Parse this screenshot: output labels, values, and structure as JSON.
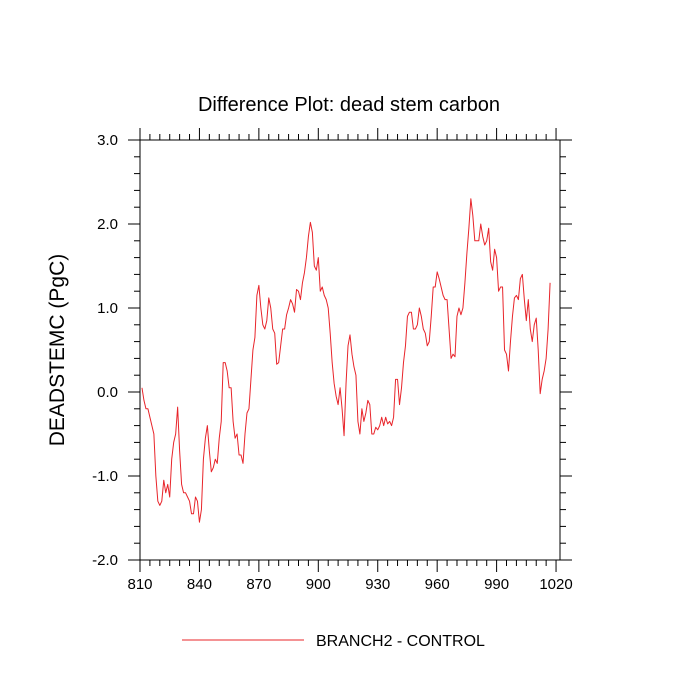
{
  "chart_data": {
    "type": "line",
    "title": "Difference Plot: dead stem carbon",
    "ylabel": "DEADSTEMC  (PgC)",
    "xlabel": "",
    "xlim": [
      810,
      1022
    ],
    "ylim": [
      -2.0,
      3.0
    ],
    "x_ticks": [
      810,
      840,
      870,
      900,
      930,
      960,
      990,
      1020
    ],
    "x_tick_labels": [
      "810",
      "840",
      "870",
      "900",
      "930",
      "960",
      "990",
      "1020"
    ],
    "y_ticks": [
      -2.0,
      -1.0,
      0.0,
      1.0,
      2.0,
      3.0
    ],
    "y_tick_labels": [
      "-2.0",
      "-1.0",
      "0.0",
      "1.0",
      "2.0",
      "3.0"
    ],
    "grid": false,
    "legend_position": "bottom",
    "series": [
      {
        "name": "BRANCH2 - CONTROL",
        "color": "#e8242a",
        "points": [
          [
            811,
            0.05
          ],
          [
            812,
            -0.1
          ],
          [
            813,
            -0.2
          ],
          [
            814,
            -0.2
          ],
          [
            815,
            -0.3
          ],
          [
            816,
            -0.4
          ],
          [
            817,
            -0.5
          ],
          [
            818,
            -1.0
          ],
          [
            819,
            -1.3
          ],
          [
            820,
            -1.35
          ],
          [
            821,
            -1.3
          ],
          [
            822,
            -1.05
          ],
          [
            823,
            -1.2
          ],
          [
            824,
            -1.1
          ],
          [
            825,
            -1.25
          ],
          [
            826,
            -0.8
          ],
          [
            827,
            -0.6
          ],
          [
            828,
            -0.5
          ],
          [
            829,
            -0.18
          ],
          [
            830,
            -0.7
          ],
          [
            831,
            -1.1
          ],
          [
            832,
            -1.2
          ],
          [
            833,
            -1.2
          ],
          [
            834,
            -1.25
          ],
          [
            835,
            -1.3
          ],
          [
            836,
            -1.45
          ],
          [
            837,
            -1.45
          ],
          [
            838,
            -1.25
          ],
          [
            839,
            -1.3
          ],
          [
            840,
            -1.55
          ],
          [
            841,
            -1.4
          ],
          [
            842,
            -0.8
          ],
          [
            843,
            -0.55
          ],
          [
            844,
            -0.4
          ],
          [
            845,
            -0.7
          ],
          [
            846,
            -0.95
          ],
          [
            847,
            -0.9
          ],
          [
            848,
            -0.8
          ],
          [
            849,
            -0.85
          ],
          [
            850,
            -0.55
          ],
          [
            851,
            -0.35
          ],
          [
            852,
            0.35
          ],
          [
            853,
            0.35
          ],
          [
            854,
            0.25
          ],
          [
            855,
            0.05
          ],
          [
            856,
            0.05
          ],
          [
            857,
            -0.35
          ],
          [
            858,
            -0.55
          ],
          [
            859,
            -0.5
          ],
          [
            860,
            -0.75
          ],
          [
            861,
            -0.75
          ],
          [
            862,
            -0.85
          ],
          [
            863,
            -0.5
          ],
          [
            864,
            -0.25
          ],
          [
            865,
            -0.2
          ],
          [
            866,
            0.15
          ],
          [
            867,
            0.5
          ],
          [
            868,
            0.65
          ],
          [
            869,
            1.15
          ],
          [
            870,
            1.27
          ],
          [
            871,
            1.0
          ],
          [
            872,
            0.8
          ],
          [
            873,
            0.75
          ],
          [
            874,
            0.85
          ],
          [
            875,
            1.12
          ],
          [
            876,
            1.0
          ],
          [
            877,
            0.75
          ],
          [
            878,
            0.7
          ],
          [
            879,
            0.33
          ],
          [
            880,
            0.35
          ],
          [
            881,
            0.55
          ],
          [
            882,
            0.75
          ],
          [
            883,
            0.75
          ],
          [
            884,
            0.92
          ],
          [
            885,
            1.0
          ],
          [
            886,
            1.1
          ],
          [
            887,
            1.05
          ],
          [
            888,
            0.95
          ],
          [
            889,
            1.22
          ],
          [
            890,
            1.2
          ],
          [
            891,
            1.1
          ],
          [
            892,
            1.3
          ],
          [
            893,
            1.42
          ],
          [
            894,
            1.6
          ],
          [
            895,
            1.85
          ],
          [
            896,
            2.02
          ],
          [
            897,
            1.9
          ],
          [
            898,
            1.5
          ],
          [
            899,
            1.45
          ],
          [
            900,
            1.6
          ],
          [
            901,
            1.2
          ],
          [
            902,
            1.25
          ],
          [
            903,
            1.15
          ],
          [
            904,
            1.1
          ],
          [
            905,
            1.0
          ],
          [
            906,
            0.7
          ],
          [
            907,
            0.35
          ],
          [
            908,
            0.1
          ],
          [
            909,
            -0.05
          ],
          [
            910,
            -0.15
          ],
          [
            911,
            0.05
          ],
          [
            912,
            -0.2
          ],
          [
            913,
            -0.52
          ],
          [
            914,
            0.1
          ],
          [
            915,
            0.55
          ],
          [
            916,
            0.68
          ],
          [
            917,
            0.45
          ],
          [
            918,
            0.3
          ],
          [
            919,
            0.2
          ],
          [
            920,
            -0.35
          ],
          [
            921,
            -0.5
          ],
          [
            922,
            -0.2
          ],
          [
            923,
            -0.35
          ],
          [
            924,
            -0.25
          ],
          [
            925,
            -0.1
          ],
          [
            926,
            -0.15
          ],
          [
            927,
            -0.5
          ],
          [
            928,
            -0.5
          ],
          [
            929,
            -0.42
          ],
          [
            930,
            -0.45
          ],
          [
            931,
            -0.4
          ],
          [
            932,
            -0.3
          ],
          [
            933,
            -0.4
          ],
          [
            934,
            -0.3
          ],
          [
            935,
            -0.38
          ],
          [
            936,
            -0.35
          ],
          [
            937,
            -0.4
          ],
          [
            938,
            -0.3
          ],
          [
            939,
            0.15
          ],
          [
            940,
            0.15
          ],
          [
            941,
            -0.15
          ],
          [
            942,
            0.05
          ],
          [
            943,
            0.35
          ],
          [
            944,
            0.55
          ],
          [
            945,
            0.9
          ],
          [
            946,
            0.95
          ],
          [
            947,
            0.95
          ],
          [
            948,
            0.75
          ],
          [
            949,
            0.75
          ],
          [
            950,
            0.8
          ],
          [
            951,
            1.0
          ],
          [
            952,
            0.9
          ],
          [
            953,
            0.75
          ],
          [
            954,
            0.7
          ],
          [
            955,
            0.55
          ],
          [
            956,
            0.6
          ],
          [
            957,
            0.9
          ],
          [
            958,
            1.25
          ],
          [
            959,
            1.25
          ],
          [
            960,
            1.43
          ],
          [
            961,
            1.35
          ],
          [
            962,
            1.25
          ],
          [
            963,
            1.15
          ],
          [
            964,
            1.1
          ],
          [
            965,
            1.1
          ],
          [
            966,
            0.75
          ],
          [
            967,
            0.4
          ],
          [
            968,
            0.45
          ],
          [
            969,
            0.42
          ],
          [
            970,
            0.9
          ],
          [
            971,
            1.0
          ],
          [
            972,
            0.92
          ],
          [
            973,
            1.0
          ],
          [
            974,
            1.3
          ],
          [
            975,
            1.65
          ],
          [
            976,
            1.95
          ],
          [
            977,
            2.3
          ],
          [
            978,
            2.1
          ],
          [
            979,
            1.8
          ],
          [
            980,
            1.8
          ],
          [
            981,
            1.8
          ],
          [
            982,
            2.0
          ],
          [
            983,
            1.85
          ],
          [
            984,
            1.75
          ],
          [
            985,
            1.8
          ],
          [
            986,
            1.95
          ],
          [
            987,
            1.55
          ],
          [
            988,
            1.45
          ],
          [
            989,
            1.7
          ],
          [
            990,
            1.6
          ],
          [
            991,
            1.2
          ],
          [
            992,
            1.25
          ],
          [
            993,
            1.25
          ],
          [
            994,
            0.5
          ],
          [
            995,
            0.45
          ],
          [
            996,
            0.25
          ],
          [
            997,
            0.6
          ],
          [
            998,
            0.9
          ],
          [
            999,
            1.12
          ],
          [
            1000,
            1.15
          ],
          [
            1001,
            1.1
          ],
          [
            1002,
            1.35
          ],
          [
            1003,
            1.4
          ],
          [
            1004,
            1.1
          ],
          [
            1005,
            0.85
          ],
          [
            1006,
            1.1
          ],
          [
            1007,
            0.75
          ],
          [
            1008,
            0.6
          ],
          [
            1009,
            0.8
          ],
          [
            1010,
            0.88
          ],
          [
            1011,
            0.5
          ],
          [
            1012,
            -0.02
          ],
          [
            1013,
            0.15
          ],
          [
            1014,
            0.25
          ],
          [
            1015,
            0.4
          ],
          [
            1016,
            0.75
          ],
          [
            1017,
            1.3
          ]
        ]
      }
    ]
  }
}
